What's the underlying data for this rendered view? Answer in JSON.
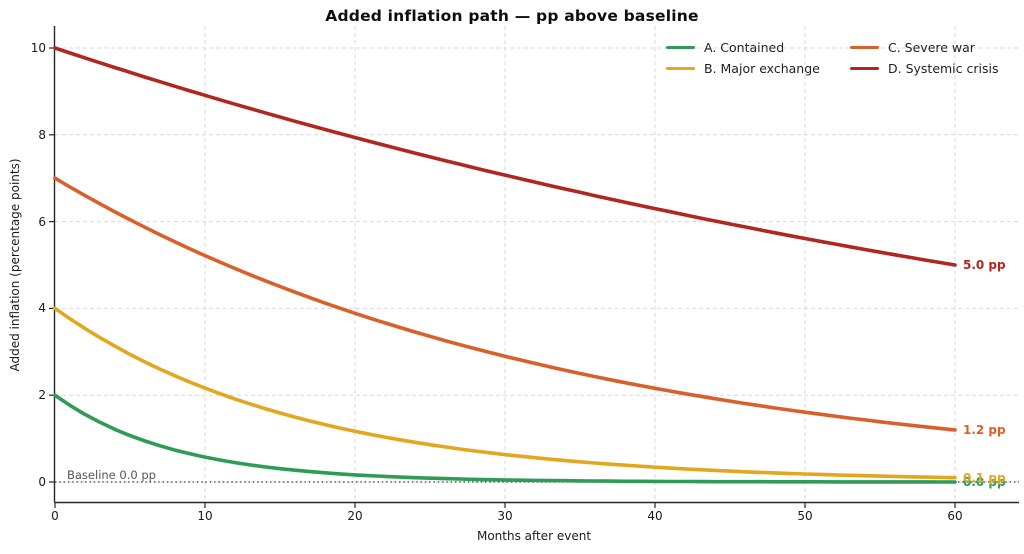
{
  "chart_data": {
    "type": "line",
    "title": "Added inflation path — pp above baseline",
    "xlabel": "Months after event",
    "ylabel": "Added inflation (percentage points)",
    "xlim": [
      0,
      64
    ],
    "ylim": [
      -0.5,
      10.5
    ],
    "xticks": [
      0,
      10,
      20,
      30,
      40,
      50,
      60
    ],
    "yticks": [
      0,
      2,
      4,
      6,
      8,
      10
    ],
    "grid": true,
    "grid_style": "dashed",
    "legend_position": "upper right",
    "legend_columns": 2,
    "baseline": {
      "y": 0,
      "label": "Baseline 0.0 pp"
    },
    "x": [
      0,
      1,
      2,
      3,
      4,
      5,
      6,
      7,
      8,
      9,
      10,
      11,
      12,
      13,
      14,
      15,
      16,
      17,
      18,
      19,
      20,
      21,
      22,
      23,
      24,
      25,
      26,
      27,
      28,
      29,
      30,
      31,
      32,
      33,
      34,
      35,
      36,
      37,
      38,
      39,
      40,
      41,
      42,
      43,
      44,
      45,
      46,
      47,
      48,
      49,
      50,
      51,
      52,
      53,
      54,
      55,
      56,
      57,
      58,
      59,
      60
    ],
    "series": [
      {
        "key": "a",
        "name": "A. Contained",
        "color": "#2e9b57",
        "end_label": "0.0 pp",
        "values": [
          2.0,
          1.765,
          1.558,
          1.375,
          1.213,
          1.07,
          0.944,
          0.833,
          0.736,
          0.649,
          0.573,
          0.506,
          0.446,
          0.394,
          0.347,
          0.307,
          0.271,
          0.239,
          0.211,
          0.186,
          0.164,
          0.145,
          0.128,
          0.113,
          0.1,
          0.088,
          0.078,
          0.068,
          0.06,
          0.053,
          0.047,
          0.041,
          0.037,
          0.032,
          0.029,
          0.025,
          0.022,
          0.02,
          0.017,
          0.015,
          0.014,
          0.012,
          0.011,
          0.009,
          0.008,
          0.007,
          0.007,
          0.006,
          0.005,
          0.005,
          0.004,
          0.004,
          0.003,
          0.003,
          0.002,
          0.002,
          0.002,
          0.002,
          0.002,
          0.001,
          0.001
        ]
      },
      {
        "key": "b",
        "name": "B. Major exchange",
        "color": "#e2a71e",
        "end_label": "0.1 pp",
        "values": [
          4.0,
          3.761,
          3.537,
          3.326,
          3.128,
          2.941,
          2.766,
          2.601,
          2.446,
          2.3,
          2.163,
          2.034,
          1.913,
          1.799,
          1.691,
          1.59,
          1.495,
          1.406,
          1.322,
          1.243,
          1.169,
          1.1,
          1.034,
          0.972,
          0.914,
          0.86,
          0.808,
          0.76,
          0.715,
          0.672,
          0.632,
          0.594,
          0.559,
          0.526,
          0.494,
          0.465,
          0.437,
          0.411,
          0.386,
          0.363,
          0.342,
          0.321,
          0.302,
          0.284,
          0.267,
          0.251,
          0.236,
          0.222,
          0.209,
          0.196,
          0.185,
          0.174,
          0.163,
          0.154,
          0.145,
          0.136,
          0.128,
          0.12,
          0.113,
          0.106,
          0.1
        ]
      },
      {
        "key": "c",
        "name": "C. Severe war",
        "color": "#d95f2b",
        "end_label": "1.2 pp",
        "values": [
          7.0,
          6.797,
          6.6,
          6.409,
          6.223,
          6.043,
          5.868,
          5.698,
          5.533,
          5.372,
          5.217,
          5.066,
          4.919,
          4.776,
          4.638,
          4.504,
          4.373,
          4.246,
          4.123,
          4.004,
          3.888,
          3.775,
          3.666,
          3.559,
          3.456,
          3.356,
          3.259,
          3.164,
          3.073,
          2.984,
          2.897,
          2.813,
          2.732,
          2.652,
          2.575,
          2.501,
          2.428,
          2.358,
          2.289,
          2.223,
          2.158,
          2.096,
          2.035,
          1.976,
          1.919,
          1.863,
          1.809,
          1.757,
          1.706,
          1.656,
          1.608,
          1.562,
          1.516,
          1.472,
          1.43,
          1.388,
          1.348,
          1.309,
          1.271,
          1.234,
          1.2
        ]
      },
      {
        "key": "d",
        "name": "D. Systemic crisis",
        "color": "#b0271f",
        "end_label": "5.0 pp",
        "values": [
          10.0,
          9.885,
          9.771,
          9.659,
          9.548,
          9.439,
          9.33,
          9.223,
          9.117,
          9.012,
          8.909,
          8.806,
          8.705,
          8.605,
          8.506,
          8.409,
          8.312,
          8.217,
          8.122,
          8.029,
          7.937,
          7.846,
          7.755,
          7.666,
          7.578,
          7.491,
          7.405,
          7.32,
          7.236,
          7.153,
          7.071,
          6.99,
          6.909,
          6.83,
          6.751,
          6.674,
          6.597,
          6.521,
          6.446,
          6.372,
          6.299,
          6.227,
          6.155,
          6.084,
          6.014,
          5.945,
          5.877,
          5.809,
          5.742,
          5.676,
          5.611,
          5.547,
          5.483,
          5.42,
          5.358,
          5.296,
          5.235,
          5.175,
          5.116,
          5.057,
          5.0
        ]
      }
    ],
    "colors": {
      "background": "#ffffff",
      "grid": "#d9d9d9",
      "spine": "#262626",
      "baseline_line": "#3a3a3a",
      "baseline_text": "#555555",
      "tick_text": "#1a1a1a"
    }
  }
}
